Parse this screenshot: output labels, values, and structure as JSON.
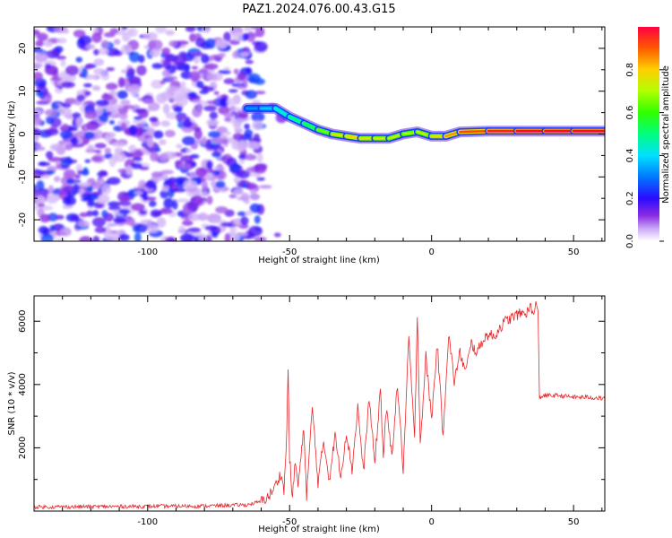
{
  "figure_title": "PAZ1.2024.076.00.43.G15",
  "colors": {
    "snr_line": "#e8262a",
    "axis": "#000000"
  },
  "chart_data": [
    {
      "type": "heatmap",
      "title": "PAZ1.2024.076.00.43.G15",
      "xlabel": "Height of straight line (km)",
      "ylabel": "Frequency (Hz)",
      "xlim": [
        -140,
        61
      ],
      "ylim": [
        -25,
        25
      ],
      "xticks": [
        -100,
        -50,
        0,
        50
      ],
      "yticks": [
        -20,
        -10,
        0,
        10,
        20
      ],
      "xtick_labels": [
        "-100",
        "-50",
        "0",
        "50"
      ],
      "ytick_labels": [
        "-20",
        "-10",
        "0",
        "10",
        "20"
      ],
      "colorbar": {
        "label": "Normalized spectral amplitude",
        "range": [
          0,
          1
        ],
        "ticks": [
          0.0,
          0.2,
          0.4,
          0.6,
          0.8
        ],
        "tick_labels": [
          "0.0",
          "0.2",
          "0.4",
          "0.6",
          "0.8"
        ],
        "colormap": "rainbow-white-to-red"
      },
      "noise_region": {
        "x_range": [
          -140,
          -60
        ],
        "freq_range": [
          -25,
          25
        ],
        "amplitude": [
          0.0,
          0.25
        ]
      },
      "signal_track": {
        "x": [
          -65,
          -60,
          -55,
          -50,
          -45,
          -40,
          -35,
          -30,
          -25,
          -20,
          -15,
          -10,
          -5,
          0,
          5,
          10,
          20,
          30,
          40,
          50,
          61
        ],
        "frequency": [
          6,
          6,
          6,
          4,
          2.5,
          1,
          0,
          -0.5,
          -1,
          -1,
          -1,
          0,
          0.5,
          -0.5,
          -0.5,
          0.5,
          0.7,
          0.7,
          0.7,
          0.7,
          0.7
        ],
        "amplitude": [
          0.3,
          0.35,
          0.4,
          0.5,
          0.5,
          0.6,
          0.7,
          0.8,
          0.8,
          0.75,
          0.75,
          0.7,
          0.7,
          0.75,
          0.8,
          0.9,
          0.95,
          1.0,
          1.0,
          1.0,
          1.0
        ]
      },
      "grid": false
    },
    {
      "type": "line",
      "xlabel": "Height of straight line (km)",
      "ylabel": "SNR (10 * v/v)",
      "xlim": [
        -140,
        61
      ],
      "ylim": [
        0,
        6800
      ],
      "xticks": [
        -100,
        -50,
        0,
        50
      ],
      "yticks": [
        2000,
        4000,
        6000
      ],
      "xtick_labels": [
        "-100",
        "-50",
        "0",
        "50"
      ],
      "ytick_labels": [
        "2000",
        "4000",
        "6000"
      ],
      "series": [
        {
          "color": "#e8262a",
          "x": [
            -140,
            -120,
            -100,
            -80,
            -65,
            -60,
            -57,
            -55,
            -53,
            -52,
            -51,
            -50.5,
            -50,
            -49,
            -48,
            -47,
            -45,
            -44,
            -42,
            -40,
            -38,
            -36,
            -34,
            -32,
            -30,
            -28,
            -26,
            -24,
            -22,
            -20,
            -18,
            -17,
            -16,
            -14,
            -12,
            -10,
            -8,
            -6,
            -5,
            -4,
            -2,
            0,
            2,
            4,
            6,
            8,
            10,
            12,
            14,
            16,
            18,
            20,
            22,
            24,
            26,
            28,
            30,
            32,
            34,
            35,
            36,
            37,
            37.5,
            38,
            40,
            45,
            50,
            55,
            61
          ],
          "y": [
            130,
            140,
            150,
            160,
            200,
            300,
            500,
            800,
            1200,
            600,
            2500,
            4500,
            1700,
            400,
            1600,
            800,
            2600,
            500,
            3300,
            900,
            2200,
            1000,
            2400,
            1100,
            2500,
            1300,
            3300,
            1200,
            3600,
            1500,
            3900,
            1700,
            3200,
            1800,
            4000,
            1300,
            5500,
            2200,
            6300,
            2100,
            4900,
            2900,
            5300,
            2400,
            5600,
            4100,
            5000,
            4400,
            5300,
            5000,
            5400,
            5600,
            5500,
            5800,
            6000,
            6100,
            6200,
            6250,
            6300,
            6500,
            6150,
            6600,
            6200,
            3600,
            3650,
            3650,
            3600,
            3600,
            3550
          ]
        }
      ],
      "grid": false
    }
  ]
}
